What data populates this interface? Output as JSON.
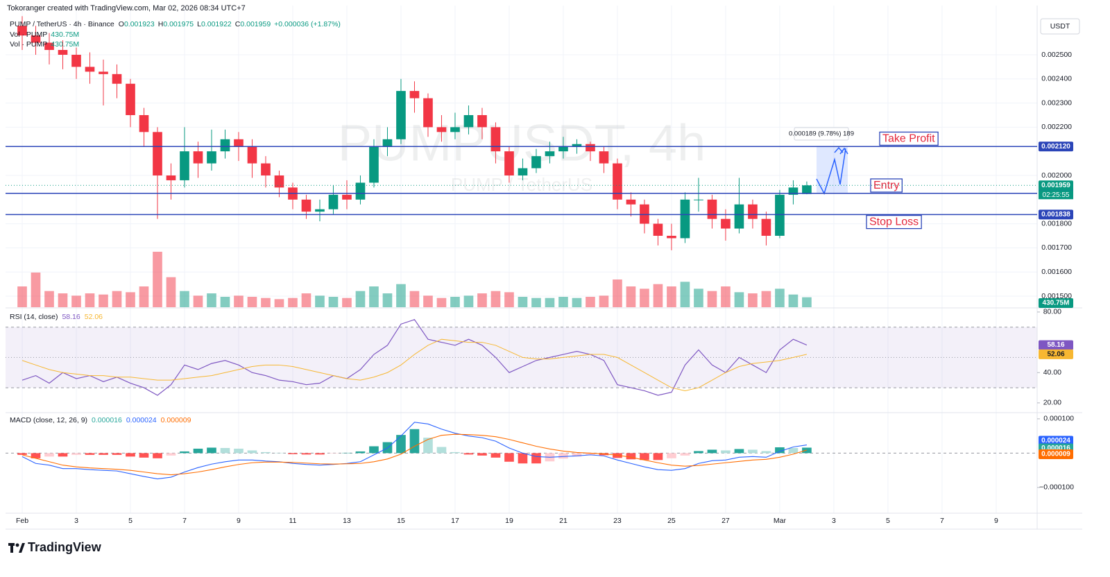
{
  "attribution": "Tokoranger created with TradingView.com, Mar 02, 2026 08:34 UTC+7",
  "brand": "TradingView",
  "currency": "USDT",
  "chart_data": [
    {
      "type": "candlestick",
      "title": "PUMP / TetherUS · 4h · Binance",
      "watermark": "PUMPUSDT, 4h",
      "watermark_sub": "PUMP / TetherUS",
      "ohlc_legend": [
        "O",
        "H",
        "L",
        "C"
      ],
      "change": "+0.000036 (+1.87%)",
      "countdown": "02:25:55",
      "up_color": "#089981",
      "down_color": "#f23645",
      "open": [
        0.00262,
        0.00258,
        0.00255,
        0.00252,
        0.0025,
        0.00245,
        0.00243,
        0.00242,
        0.00238,
        0.00225,
        0.00218,
        0.002,
        0.00198,
        0.0021,
        0.00205,
        0.0021,
        0.00215,
        0.00212,
        0.00205,
        0.002,
        0.00195,
        0.0019,
        0.00185,
        0.00186,
        0.00192,
        0.0019,
        0.00197,
        0.00212,
        0.00215,
        0.00235,
        0.00232,
        0.0022,
        0.00218,
        0.0022,
        0.00225,
        0.0022,
        0.0021,
        0.002,
        0.00203,
        0.00208,
        0.0021,
        0.00212,
        0.00213,
        0.0021,
        0.00205,
        0.0019,
        0.00188,
        0.0018,
        0.00175,
        0.00174,
        0.0019,
        0.0019,
        0.00182,
        0.00178,
        0.00188,
        0.00182,
        0.00175,
        0.00192,
        0.001923
      ],
      "high": [
        0.00266,
        0.00262,
        0.00259,
        0.00256,
        0.00253,
        0.00251,
        0.00248,
        0.00246,
        0.0024,
        0.00228,
        0.0022,
        0.00205,
        0.0022,
        0.00214,
        0.00219,
        0.00219,
        0.00218,
        0.00215,
        0.00208,
        0.00202,
        0.00197,
        0.00192,
        0.0019,
        0.00196,
        0.00198,
        0.002,
        0.00215,
        0.0022,
        0.0024,
        0.00239,
        0.00234,
        0.00225,
        0.00226,
        0.00229,
        0.00228,
        0.00222,
        0.00212,
        0.00207,
        0.00211,
        0.00214,
        0.00216,
        0.00215,
        0.00214,
        0.00212,
        0.00207,
        0.00193,
        0.0019,
        0.00182,
        0.0018,
        0.00193,
        0.00199,
        0.00192,
        0.00186,
        0.00199,
        0.0019,
        0.00185,
        0.00194,
        0.00198,
        0.001975
      ],
      "low": [
        0.00252,
        0.0025,
        0.00246,
        0.00244,
        0.0024,
        0.00238,
        0.00229,
        0.00232,
        0.0022,
        0.00212,
        0.00182,
        0.0019,
        0.00195,
        0.00199,
        0.00202,
        0.00207,
        0.00206,
        0.00199,
        0.00195,
        0.00191,
        0.00186,
        0.00182,
        0.00181,
        0.00184,
        0.00186,
        0.00188,
        0.00195,
        0.00208,
        0.00213,
        0.00226,
        0.00216,
        0.00214,
        0.00215,
        0.00217,
        0.00215,
        0.00205,
        0.00197,
        0.00198,
        0.00201,
        0.00205,
        0.00207,
        0.00209,
        0.00206,
        0.00201,
        0.00186,
        0.00183,
        0.00176,
        0.00171,
        0.00169,
        0.00172,
        0.00185,
        0.00178,
        0.00173,
        0.00176,
        0.00178,
        0.00171,
        0.00174,
        0.00188,
        0.001922
      ],
      "close": [
        0.00258,
        0.00255,
        0.00252,
        0.0025,
        0.00245,
        0.00243,
        0.00242,
        0.00238,
        0.00225,
        0.00218,
        0.002,
        0.00198,
        0.0021,
        0.00205,
        0.0021,
        0.00215,
        0.00212,
        0.00205,
        0.002,
        0.00195,
        0.0019,
        0.00185,
        0.00186,
        0.00192,
        0.0019,
        0.00197,
        0.00212,
        0.00215,
        0.00235,
        0.00232,
        0.0022,
        0.00218,
        0.0022,
        0.00225,
        0.0022,
        0.0021,
        0.002,
        0.00203,
        0.00208,
        0.0021,
        0.00212,
        0.00213,
        0.0021,
        0.00205,
        0.0019,
        0.00188,
        0.0018,
        0.00175,
        0.00174,
        0.0019,
        0.0019,
        0.00182,
        0.00178,
        0.00188,
        0.00182,
        0.00175,
        0.00192,
        0.00195,
        0.001959
      ],
      "volume": {
        "name": "Vol · PUMP",
        "value_label": "430.75M",
        "values": [
          900,
          1500,
          700,
          600,
          500,
          600,
          550,
          700,
          650,
          900,
          2400,
          1300,
          700,
          500,
          600,
          450,
          500,
          450,
          400,
          350,
          400,
          600,
          500,
          450,
          400,
          700,
          900,
          600,
          1000,
          700,
          500,
          400,
          450,
          500,
          600,
          700,
          650,
          450,
          400,
          400,
          450,
          400,
          450,
          500,
          1200,
          900,
          800,
          1000,
          900,
          1100,
          800,
          700,
          900,
          650,
          600,
          700,
          800,
          550,
          430.75
        ]
      },
      "xlim": [
        -1.231,
        75.03
      ],
      "xticks": [
        {
          "value": 0,
          "label": "Feb"
        },
        {
          "value": 4,
          "label": "3"
        },
        {
          "value": 8,
          "label": "5"
        },
        {
          "value": 12,
          "label": "7"
        },
        {
          "value": 16,
          "label": "9"
        },
        {
          "value": 20,
          "label": "11"
        },
        {
          "value": 24,
          "label": "13"
        },
        {
          "value": 28,
          "label": "15"
        },
        {
          "value": 32,
          "label": "17"
        },
        {
          "value": 36,
          "label": "19"
        },
        {
          "value": 40,
          "label": "21"
        },
        {
          "value": 44,
          "label": "23"
        },
        {
          "value": 48,
          "label": "25"
        },
        {
          "value": 52,
          "label": "27"
        },
        {
          "value": 56,
          "label": "Mar"
        },
        {
          "value": 60,
          "label": "3"
        },
        {
          "value": 64,
          "label": "5"
        },
        {
          "value": 68,
          "label": "7"
        },
        {
          "value": 72,
          "label": "9"
        }
      ],
      "ylim": [
        0.001454,
        0.002704
      ],
      "yticks": [
        {
          "value": 0.0025,
          "label": "0.002500"
        },
        {
          "value": 0.0024,
          "label": "0.002400"
        },
        {
          "value": 0.0023,
          "label": "0.002300"
        },
        {
          "value": 0.0022,
          "label": "0.002200"
        },
        {
          "value": 0.002,
          "label": "0.002000"
        },
        {
          "value": 0.0018,
          "label": "0.001800"
        },
        {
          "value": 0.0017,
          "label": "0.001700"
        },
        {
          "value": 0.0016,
          "label": "0.001600"
        },
        {
          "value": 0.0015,
          "label": "0.001500"
        }
      ],
      "grid": true,
      "levels": [
        {
          "name": "Take Profit",
          "price": {
            "value": 0.00212,
            "label": "0.002120"
          },
          "color": "#2b45b8",
          "text_color": "#e4263b"
        },
        {
          "name": "Entry",
          "price": {
            "value": 0.001926,
            "label": "0.001926"
          },
          "color": "#2b45b8",
          "text_color": "#e4263b"
        },
        {
          "name": "Stop Loss",
          "price": {
            "value": 0.001838,
            "label": "0.001838"
          },
          "color": "#2b45b8",
          "text_color": "#e4263b"
        }
      ],
      "measure": {
        "label": "0.000189 (9.78%) 189"
      }
    },
    {
      "type": "line",
      "title": "RSI (14, close)",
      "series": [
        {
          "color": "#7e57c2",
          "values": [
            35,
            38,
            33,
            40,
            36,
            38,
            34,
            37,
            33,
            30,
            25,
            32,
            45,
            42,
            46,
            48,
            45,
            40,
            38,
            35,
            34,
            32,
            33,
            38,
            36,
            42,
            52,
            58,
            72,
            75,
            62,
            60,
            58,
            62,
            58,
            50,
            40,
            44,
            48,
            50,
            52,
            54,
            52,
            48,
            32,
            30,
            28,
            25,
            27,
            45,
            55,
            45,
            40,
            50,
            45,
            40,
            55,
            62,
            58.16
          ]
        },
        {
          "color": "#f7b731",
          "values": [
            48,
            45,
            42,
            40,
            39,
            38,
            38,
            37,
            37,
            36,
            35,
            35,
            36,
            37,
            38,
            40,
            42,
            44,
            45,
            45,
            44,
            42,
            40,
            38,
            36,
            35,
            37,
            40,
            45,
            52,
            58,
            62,
            61,
            60,
            60,
            58,
            54,
            50,
            49,
            49,
            50,
            51,
            52,
            52,
            50,
            45,
            40,
            35,
            30,
            28,
            30,
            35,
            40,
            44,
            46,
            47,
            48,
            50,
            52.06
          ]
        }
      ],
      "bands": [
        70,
        50,
        30
      ],
      "ylim": [
        14,
        82.7
      ],
      "yticks": [
        {
          "value": 80,
          "label": "80.00"
        },
        {
          "value": 40,
          "label": "40.00"
        },
        {
          "value": 20,
          "label": "20.00"
        }
      ]
    },
    {
      "type": "macd",
      "title": "MACD (close, 12, 26, 9)",
      "series": [
        {
          "color": "#26a69a",
          "values": [
            -5e-06,
            -1.5e-05,
            -1e-05,
            -1e-05,
            -5e-06,
            -5e-06,
            -5e-06,
            -5e-06,
            -1e-05,
            -1.3e-05,
            -1.5e-05,
            -7e-06,
            5e-06,
            1.3e-05,
            1.6e-05,
            1.5e-05,
            1.3e-05,
            8e-06,
            3e-06,
            1e-06,
            -3e-06,
            -4e-06,
            -4e-06,
            -1e-06,
            1e-06,
            5e-06,
            2e-05,
            3.2e-05,
            5.3e-05,
            7e-05,
            4.5e-05,
            1.8e-05,
            3e-06,
            -4e-06,
            -7e-06,
            -1.3e-05,
            -2.5e-05,
            -3e-05,
            -3e-05,
            -2.4e-05,
            -1.6e-05,
            -1e-05,
            -5e-06,
            -6e-06,
            -1.4e-05,
            -1.8e-05,
            -2e-05,
            -2e-05,
            -1.5e-05,
            -7e-06,
            6e-06,
            1e-05,
            8e-06,
            1.2e-05,
            1e-05,
            6e-06,
            1.7e-05,
            1.5e-05,
            1.6e-05
          ]
        },
        {
          "color": "#2962ff",
          "values": [
            -1e-05,
            -3e-05,
            -3.5e-05,
            -4.5e-05,
            -4.5e-05,
            -4.8e-05,
            -5e-05,
            -5.2e-05,
            -6e-05,
            -6.8e-05,
            -7.5e-05,
            -7e-05,
            -5.5e-05,
            -4.2e-05,
            -3.2e-05,
            -2.5e-05,
            -2e-05,
            -2e-05,
            -2.3e-05,
            -2.5e-05,
            -3e-05,
            -3.3e-05,
            -3.5e-05,
            -3.3e-05,
            -3e-05,
            -2.5e-05,
            -5e-06,
            1.5e-05,
            5e-05,
            9e-05,
            8.5e-05,
            7e-05,
            5.8e-05,
            5e-05,
            4.5e-05,
            3.5e-05,
            1.5e-05,
            0,
            -1e-05,
            -1.2e-05,
            -1e-05,
            -8e-06,
            -5e-06,
            -8e-06,
            -2e-05,
            -3e-05,
            -4e-05,
            -4.8e-05,
            -5e-05,
            -4.5e-05,
            -3e-05,
            -2.2e-05,
            -2e-05,
            -1.2e-05,
            -1e-05,
            -1.2e-05,
            5e-06,
            1.8e-05,
            2.4e-05
          ]
        },
        {
          "color": "#ff6d00",
          "values": [
            -5e-06,
            -1.5e-05,
            -2.5e-05,
            -3.5e-05,
            -4e-05,
            -4.3e-05,
            -4.5e-05,
            -4.7e-05,
            -5e-05,
            -5.5e-05,
            -6e-05,
            -6.3e-05,
            -6e-05,
            -5.5e-05,
            -4.8e-05,
            -4e-05,
            -3.3e-05,
            -2.8e-05,
            -2.6e-05,
            -2.6e-05,
            -2.7e-05,
            -2.9e-05,
            -3.1e-05,
            -3.2e-05,
            -3.1e-05,
            -3e-05,
            -2.5e-05,
            -1.7e-05,
            -3e-06,
            2e-05,
            4e-05,
            5.2e-05,
            5.5e-05,
            5.4e-05,
            5.2e-05,
            4.8e-05,
            4e-05,
            3e-05,
            2e-05,
            1.2e-05,
            6e-06,
            2e-06,
            0,
            -2e-06,
            -6e-06,
            -1.2e-05,
            -2e-05,
            -2.8e-05,
            -3.5e-05,
            -3.8e-05,
            -3.6e-05,
            -3.2e-05,
            -2.8e-05,
            -2.4e-05,
            -2e-05,
            -1.8e-05,
            -1.2e-05,
            -3e-06,
            9e-06
          ]
        }
      ],
      "histogram_colors": [
        "#26a69a",
        "#b2dfdb",
        "#ff5252",
        "#ffcdd2"
      ],
      "ylim": [
        -0.000175,
        0.000116
      ],
      "yticks": [
        {
          "value": 0.0001,
          "label": "0.000100"
        },
        {
          "value": -0.0001,
          "label": "−0.000100"
        }
      ]
    }
  ]
}
